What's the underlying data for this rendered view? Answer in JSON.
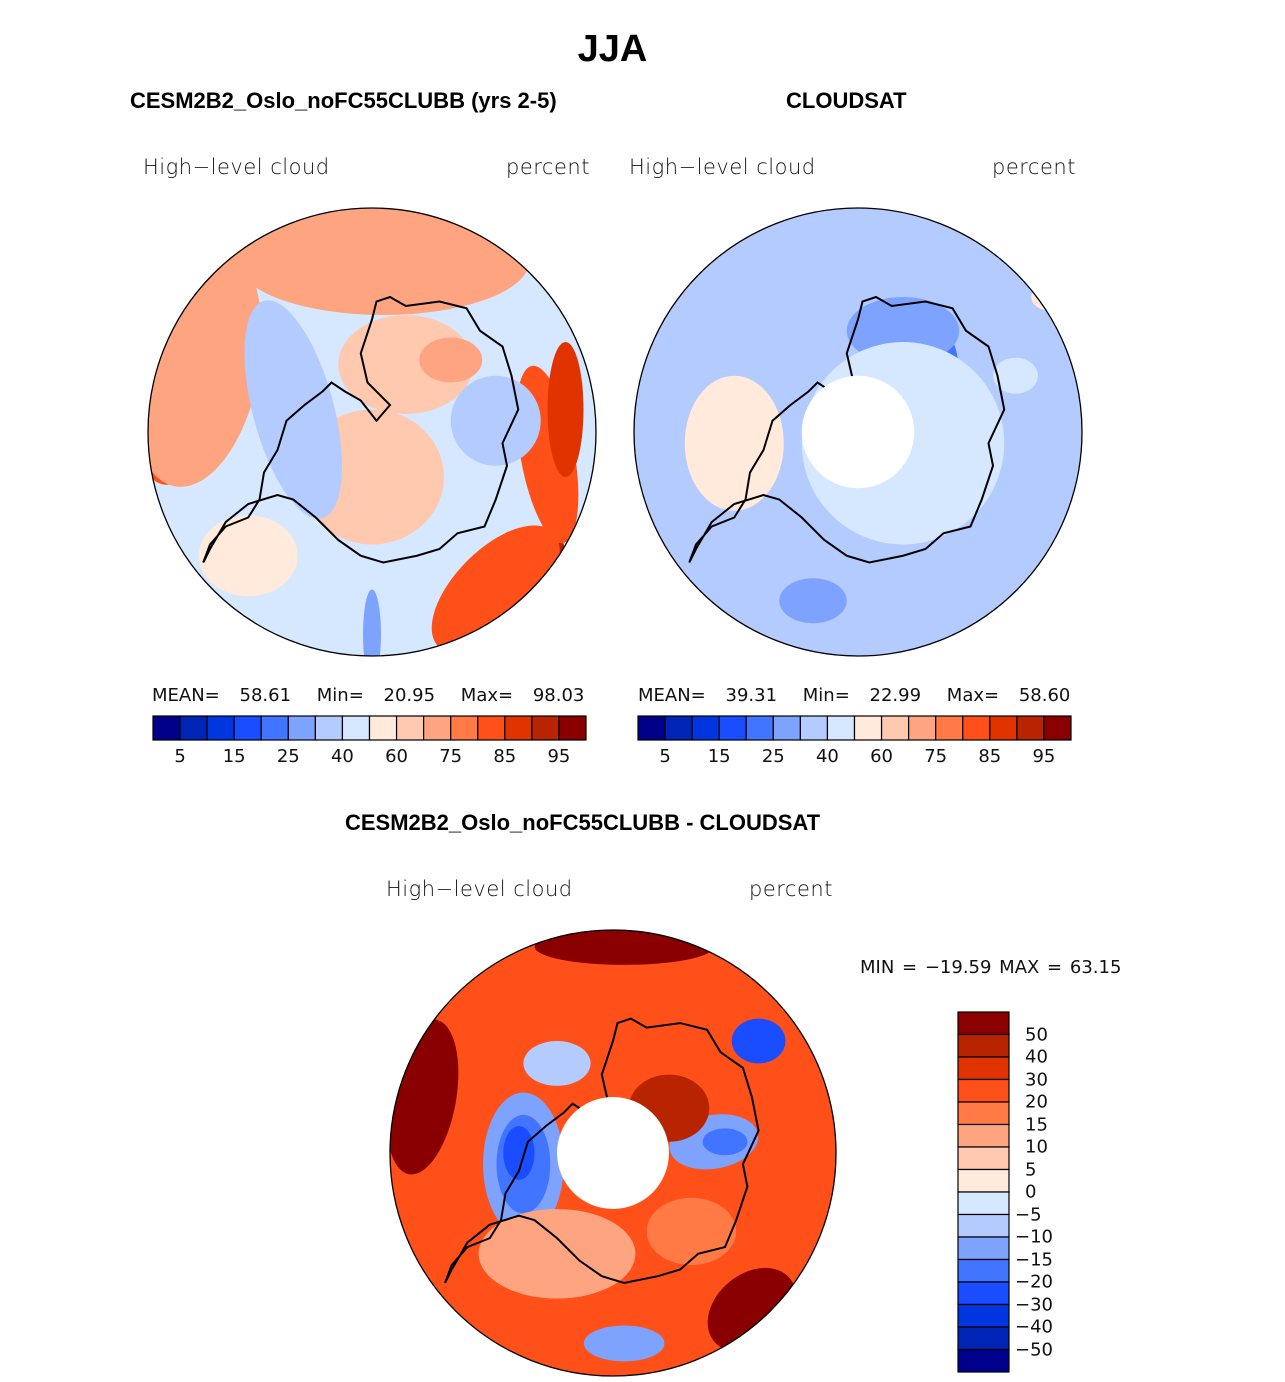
{
  "figure": {
    "title": "JJA"
  },
  "colors": {
    "levels16": [
      "#00008a",
      "#0024b5",
      "#0036e0",
      "#1a4dff",
      "#4275ff",
      "#7ea3ff",
      "#b4cbff",
      "#d5e8ff",
      "#ffeadb",
      "#ffc9b0",
      "#ffa480",
      "#ff7a45",
      "#ff5019",
      "#e03300",
      "#b82400",
      "#8a0000"
    ],
    "coast": "#000000",
    "missing": "#ffffff"
  },
  "chart_data": [
    {
      "type": "heatmap",
      "projection": "south-polar-stereographic",
      "title": "CESM2B2_Oslo_noFC55CLUBB (yrs 2-5)",
      "left_label": "High−level cloud",
      "right_label": "percent",
      "stats": {
        "mean_label": "MEAN=",
        "mean": "58.61",
        "min_label": "Min=",
        "min": "20.95",
        "max_label": "Max=",
        "max": "98.03"
      },
      "colorbar": {
        "orientation": "horizontal",
        "n_colors": 16,
        "tick_labels": [
          "5",
          "15",
          "25",
          "40",
          "60",
          "75",
          "85",
          "95"
        ]
      }
    },
    {
      "type": "heatmap",
      "projection": "south-polar-stereographic",
      "title": "CLOUDSAT",
      "left_label": "High−level cloud",
      "right_label": "percent",
      "stats": {
        "mean_label": "MEAN=",
        "mean": "39.31",
        "min_label": "Min=",
        "min": "22.99",
        "max_label": "Max=",
        "max": "58.60"
      },
      "colorbar": {
        "orientation": "horizontal",
        "n_colors": 16,
        "tick_labels": [
          "5",
          "15",
          "25",
          "40",
          "60",
          "75",
          "85",
          "95"
        ]
      },
      "missing_polar_cap": true
    },
    {
      "type": "heatmap",
      "projection": "south-polar-stereographic",
      "title": "CESM2B2_Oslo_noFC55CLUBB - CLOUDSAT",
      "left_label": "High−level cloud",
      "right_label": "percent",
      "stats_text": "MIN = −19.59 MAX =  63.15",
      "colorbar": {
        "orientation": "vertical",
        "n_colors": 16,
        "tick_labels": [
          "50",
          "40",
          "30",
          "20",
          "15",
          "10",
          "5",
          "0",
          "−5",
          "−10",
          "−15",
          "−20",
          "−30",
          "−40",
          "−50"
        ]
      },
      "missing_polar_cap": true
    }
  ],
  "fields": [
    {
      "base": 7,
      "blobs": [
        [
          0.62,
          -0.78,
          0.3,
          0.12,
          -45,
          15
        ],
        [
          0.7,
          -0.62,
          0.2,
          0.09,
          -45,
          14
        ],
        [
          0.55,
          -0.7,
          0.36,
          0.18,
          -45,
          12
        ],
        [
          0.78,
          -0.1,
          0.12,
          0.4,
          -10,
          12
        ],
        [
          0.86,
          0.1,
          0.08,
          0.3,
          0,
          13
        ],
        [
          -0.85,
          0.25,
          0.14,
          0.34,
          10,
          14
        ],
        [
          -0.85,
          0.2,
          0.2,
          0.44,
          10,
          12
        ],
        [
          -0.78,
          0.3,
          0.28,
          0.55,
          10,
          10
        ],
        [
          0.05,
          0.85,
          0.38,
          0.12,
          0,
          14
        ],
        [
          0.05,
          0.82,
          0.5,
          0.18,
          0,
          12
        ],
        [
          0.05,
          0.76,
          0.65,
          0.24,
          0,
          10
        ],
        [
          0.0,
          -0.2,
          0.32,
          0.3,
          0,
          9
        ],
        [
          0.15,
          0.3,
          0.3,
          0.22,
          0,
          9
        ],
        [
          0.35,
          0.32,
          0.14,
          0.1,
          0,
          10
        ],
        [
          -0.35,
          0.1,
          0.18,
          0.5,
          -15,
          6
        ],
        [
          0.55,
          0.05,
          0.2,
          0.2,
          0,
          6
        ],
        [
          -0.55,
          -0.55,
          0.22,
          0.18,
          0,
          8
        ],
        [
          0.0,
          -0.9,
          0.04,
          0.2,
          0,
          5
        ]
      ]
    },
    {
      "base": 6,
      "blobs": [
        [
          -0.55,
          -0.05,
          0.22,
          0.3,
          0,
          8
        ],
        [
          0.35,
          0.25,
          0.1,
          0.22,
          0,
          4
        ],
        [
          0.35,
          0.3,
          0.05,
          0.14,
          0,
          3
        ],
        [
          0.2,
          0.45,
          0.25,
          0.15,
          0,
          5
        ],
        [
          -0.2,
          -0.75,
          0.15,
          0.1,
          0,
          5
        ],
        [
          0.7,
          0.25,
          0.1,
          0.08,
          0,
          7
        ],
        [
          0.2,
          -0.05,
          0.45,
          0.45,
          0,
          7
        ],
        [
          0.85,
          0.6,
          0.08,
          0.06,
          0,
          8
        ]
      ],
      "hole": 0.25
    },
    {
      "base": 12,
      "blobs": [
        [
          -0.4,
          -0.05,
          0.18,
          0.32,
          0,
          5
        ],
        [
          -0.4,
          -0.05,
          0.12,
          0.22,
          0,
          4
        ],
        [
          -0.42,
          0.0,
          0.07,
          0.12,
          0,
          3
        ],
        [
          0.45,
          0.05,
          0.2,
          0.12,
          -10,
          5
        ],
        [
          0.5,
          0.05,
          0.1,
          0.06,
          0,
          4
        ],
        [
          0.65,
          0.5,
          0.12,
          0.1,
          0,
          3
        ],
        [
          -0.25,
          0.4,
          0.15,
          0.1,
          0,
          6
        ],
        [
          0.05,
          -0.85,
          0.18,
          0.08,
          0,
          5
        ],
        [
          0.62,
          -0.7,
          0.22,
          0.16,
          -40,
          15
        ],
        [
          -0.85,
          0.25,
          0.15,
          0.35,
          10,
          15
        ],
        [
          0.05,
          0.92,
          0.4,
          0.08,
          0,
          15
        ],
        [
          0.25,
          0.2,
          0.18,
          0.15,
          0,
          14
        ],
        [
          -0.25,
          -0.45,
          0.35,
          0.2,
          0,
          10
        ],
        [
          0.35,
          -0.35,
          0.2,
          0.15,
          0,
          11
        ]
      ],
      "hole": 0.25
    }
  ]
}
